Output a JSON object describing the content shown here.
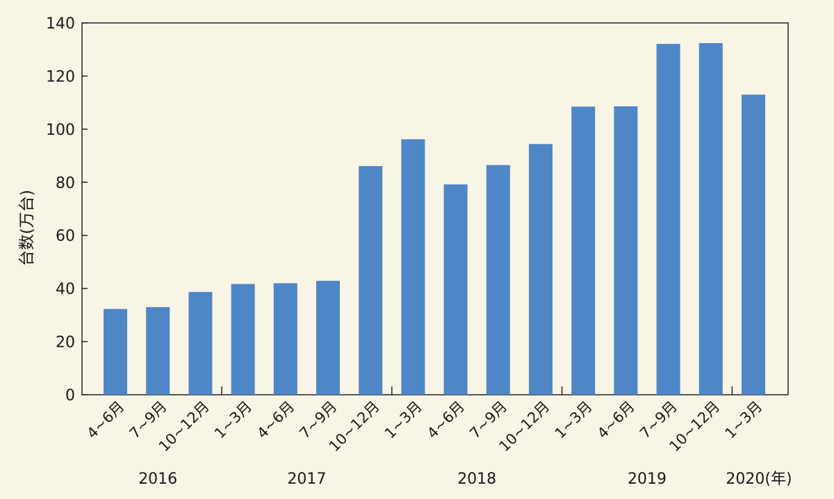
{
  "chart_data": {
    "type": "bar",
    "ylabel": "台数(万台)",
    "ylim": [
      0,
      140
    ],
    "yticks": [
      0,
      20,
      40,
      60,
      80,
      100,
      120,
      140
    ],
    "categories": [
      "4~6月",
      "7~9月",
      "10~12月",
      "1~3月",
      "4~6月",
      "7~9月",
      "10~12月",
      "1~3月",
      "4~6月",
      "7~9月",
      "10~12月",
      "1~3月",
      "4~6月",
      "7~9月",
      "10~12月",
      "1~3月"
    ],
    "values": [
      32.3,
      33.0,
      38.7,
      41.7,
      42.0,
      42.9,
      86.1,
      96.2,
      79.2,
      86.5,
      94.4,
      108.5,
      108.6,
      132.1,
      132.4,
      113.0
    ],
    "year_groups": [
      {
        "label": "2016",
        "start": 0,
        "end": 2
      },
      {
        "label": "2017",
        "start": 3,
        "end": 6
      },
      {
        "label": "2018",
        "start": 7,
        "end": 10
      },
      {
        "label": "2019",
        "start": 11,
        "end": 14
      },
      {
        "label": "2020(年)",
        "start": 15,
        "end": 15
      }
    ],
    "year_separators": [
      3,
      7,
      11,
      15
    ],
    "bar_color": "#4f86c6",
    "grid": false,
    "legend": "none"
  }
}
